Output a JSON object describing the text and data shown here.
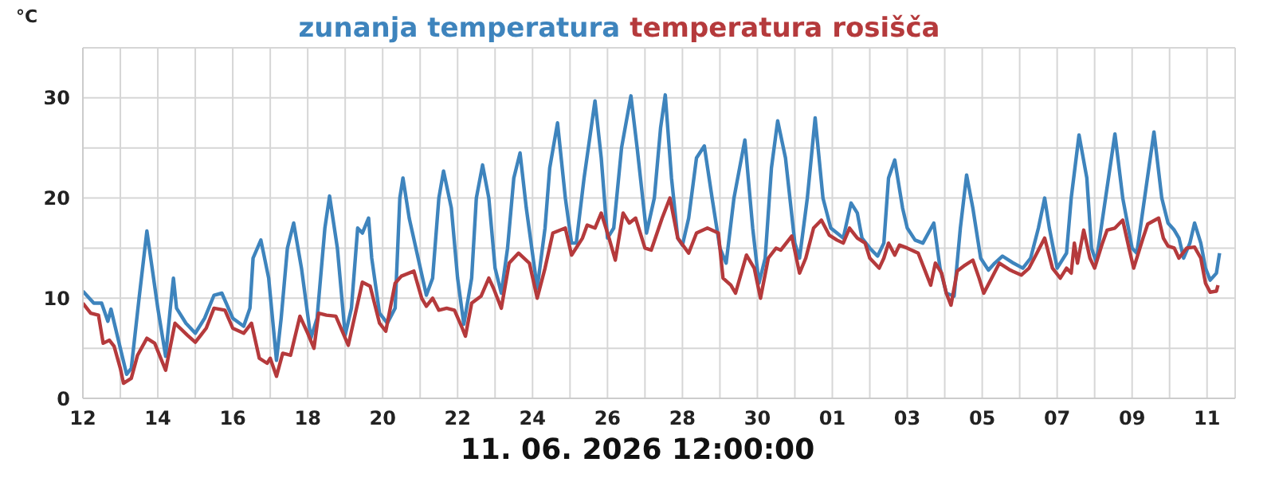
{
  "chart_data": {
    "type": "line",
    "ylabel": "°C",
    "legend": "top",
    "grid": true,
    "marker": "none",
    "line_style": "solid",
    "annotations": [
      "11. 06. 2026 12:00:00"
    ],
    "xlim": [
      "2026-05-12T00:00",
      "2026-06-11T18:00"
    ],
    "xticks": [
      {
        "value": "2026-05-12",
        "label": "12"
      },
      {
        "value": "2026-05-13",
        "label": null
      },
      {
        "value": "2026-05-14",
        "label": "14"
      },
      {
        "value": "2026-05-15",
        "label": null
      },
      {
        "value": "2026-05-16",
        "label": "16"
      },
      {
        "value": "2026-05-17",
        "label": null
      },
      {
        "value": "2026-05-18",
        "label": "18"
      },
      {
        "value": "2026-05-19",
        "label": null
      },
      {
        "value": "2026-05-20",
        "label": "20"
      },
      {
        "value": "2026-05-21",
        "label": null
      },
      {
        "value": "2026-05-22",
        "label": "22"
      },
      {
        "value": "2026-05-23",
        "label": null
      },
      {
        "value": "2026-05-24",
        "label": "24"
      },
      {
        "value": "2026-05-25",
        "label": null
      },
      {
        "value": "2026-05-26",
        "label": "26"
      },
      {
        "value": "2026-05-27",
        "label": null
      },
      {
        "value": "2026-05-28",
        "label": "28"
      },
      {
        "value": "2026-05-29",
        "label": null
      },
      {
        "value": "2026-05-30",
        "label": "30"
      },
      {
        "value": "2026-05-31",
        "label": null
      },
      {
        "value": "2026-06-01",
        "label": "01"
      },
      {
        "value": "2026-06-02",
        "label": null
      },
      {
        "value": "2026-06-03",
        "label": "03"
      },
      {
        "value": "2026-06-04",
        "label": null
      },
      {
        "value": "2026-06-05",
        "label": "05"
      },
      {
        "value": "2026-06-06",
        "label": null
      },
      {
        "value": "2026-06-07",
        "label": "07"
      },
      {
        "value": "2026-06-08",
        "label": null
      },
      {
        "value": "2026-06-09",
        "label": "09"
      },
      {
        "value": "2026-06-10",
        "label": null
      },
      {
        "value": "2026-06-11",
        "label": "11"
      }
    ],
    "ylim": [
      0,
      35
    ],
    "yticks": [
      0,
      {
        "value": 5,
        "label": null
      },
      10,
      {
        "value": 15,
        "label": null
      },
      20,
      {
        "value": 25,
        "label": null
      },
      30
    ],
    "series": [
      {
        "name": "zunanja temperatura",
        "color": "#3e84bd",
        "x": [
          "2026-05-12T00:00",
          "2026-05-12T07:00",
          "2026-05-12T12:00",
          "2026-05-12T16:00",
          "2026-05-12T18:00",
          "2026-05-13T00:00",
          "2026-05-13T04:00",
          "2026-05-13T07:00",
          "2026-05-13T12:00",
          "2026-05-13T17:00",
          "2026-05-14T00:00",
          "2026-05-14T05:00",
          "2026-05-14T08:00",
          "2026-05-14T10:00",
          "2026-05-14T12:00",
          "2026-05-14T18:00",
          "2026-05-15T00:00",
          "2026-05-15T06:00",
          "2026-05-15T12:00",
          "2026-05-15T17:00",
          "2026-05-16T00:00",
          "2026-05-16T07:00",
          "2026-05-16T11:00",
          "2026-05-16T13:00",
          "2026-05-16T18:00",
          "2026-05-16T23:00",
          "2026-05-17T04:00",
          "2026-05-17T07:00",
          "2026-05-17T11:00",
          "2026-05-17T15:00",
          "2026-05-17T20:00",
          "2026-05-18T02:00",
          "2026-05-18T06:00",
          "2026-05-18T11:00",
          "2026-05-18T14:00",
          "2026-05-18T19:00",
          "2026-05-19T00:00",
          "2026-05-19T04:00",
          "2026-05-19T08:00",
          "2026-05-19T11:00",
          "2026-05-19T15:00",
          "2026-05-19T17:00",
          "2026-05-19T22:00",
          "2026-05-20T03:00",
          "2026-05-20T08:00",
          "2026-05-20T11:00",
          "2026-05-20T13:00",
          "2026-05-20T17:00",
          "2026-05-21T04:00",
          "2026-05-21T08:00",
          "2026-05-21T12:00",
          "2026-05-21T15:00",
          "2026-05-21T20:00",
          "2026-05-22T00:00",
          "2026-05-22T04:00",
          "2026-05-22T09:00",
          "2026-05-22T12:00",
          "2026-05-22T16:00",
          "2026-05-22T20:00",
          "2026-05-23T00:00",
          "2026-05-23T04:00",
          "2026-05-23T08:00",
          "2026-05-23T12:00",
          "2026-05-23T16:00",
          "2026-05-23T20:00",
          "2026-05-24T03:00",
          "2026-05-24T08:00",
          "2026-05-24T11:00",
          "2026-05-24T16:00",
          "2026-05-24T21:00",
          "2026-05-25T01:00",
          "2026-05-25T04:00",
          "2026-05-25T09:00",
          "2026-05-25T16:00",
          "2026-05-25T20:00",
          "2026-05-26T00:00",
          "2026-05-26T04:00",
          "2026-05-26T09:00",
          "2026-05-26T15:00",
          "2026-05-26T19:00",
          "2026-05-27T01:00",
          "2026-05-27T06:00",
          "2026-05-27T10:00",
          "2026-05-27T13:00",
          "2026-05-27T17:00",
          "2026-05-27T21:00",
          "2026-05-28T00:00",
          "2026-05-28T04:00",
          "2026-05-28T09:00",
          "2026-05-28T14:00",
          "2026-05-28T19:00",
          "2026-05-29T00:00",
          "2026-05-29T04:00",
          "2026-05-29T09:00",
          "2026-05-29T16:00",
          "2026-05-29T21:00",
          "2026-05-30T01:00",
          "2026-05-30T05:00",
          "2026-05-30T09:00",
          "2026-05-30T13:00",
          "2026-05-30T18:00",
          "2026-05-31T00:00",
          "2026-05-31T03:00",
          "2026-05-31T08:00",
          "2026-05-31T13:00",
          "2026-05-31T18:00",
          "2026-05-31T23:00",
          "2026-06-01T03:00",
          "2026-06-01T07:00",
          "2026-06-01T12:00",
          "2026-06-01T16:00",
          "2026-06-01T19:00",
          "2026-06-02T00:00",
          "2026-06-02T05:00",
          "2026-06-02T09:00",
          "2026-06-02T12:00",
          "2026-06-02T16:00",
          "2026-06-02T21:00",
          "2026-06-03T00:00",
          "2026-06-03T05:00",
          "2026-06-03T10:00",
          "2026-06-03T17:00",
          "2026-06-03T21:00",
          "2026-06-04T01:00",
          "2026-06-04T06:00",
          "2026-06-04T10:00",
          "2026-06-04T14:00",
          "2026-06-04T18:00",
          "2026-06-04T23:00",
          "2026-06-05T04:00",
          "2026-06-05T08:00",
          "2026-06-05T13:00",
          "2026-06-05T20:00",
          "2026-06-06T02:00",
          "2026-06-06T07:00",
          "2026-06-06T12:00",
          "2026-06-06T16:00",
          "2026-06-06T19:00",
          "2026-06-07T00:00",
          "2026-06-07T06:00",
          "2026-06-07T09:00",
          "2026-06-07T14:00",
          "2026-06-07T19:00",
          "2026-06-07T22:00",
          "2026-06-08T01:00",
          "2026-06-08T07:00",
          "2026-06-08T13:00",
          "2026-06-08T18:00",
          "2026-06-09T00:00",
          "2026-06-09T03:00",
          "2026-06-09T08:00",
          "2026-06-09T14:00",
          "2026-06-09T19:00",
          "2026-06-09T23:00",
          "2026-06-10T03:00",
          "2026-06-10T06:00",
          "2026-06-10T09:00",
          "2026-06-10T13:00",
          "2026-06-10T16:00",
          "2026-06-10T20:00",
          "2026-06-10T23:00",
          "2026-06-11T02:00",
          "2026-06-11T06:00",
          "2026-06-11T08:00"
        ],
        "values": [
          10.7,
          9.5,
          9.5,
          7.7,
          8.9,
          5,
          2.4,
          3,
          10,
          16.7,
          9,
          4.2,
          9,
          12,
          9,
          7.5,
          6.5,
          8,
          10.3,
          10.5,
          8,
          7.2,
          9,
          14,
          15.8,
          12,
          3.8,
          8,
          15,
          17.5,
          13,
          6,
          8,
          17,
          20.2,
          15,
          6.3,
          9,
          17,
          16.5,
          18,
          14,
          8.5,
          7.5,
          9,
          20,
          22,
          18,
          10.3,
          12,
          20,
          22.7,
          19,
          12,
          7.4,
          12,
          20,
          23.3,
          20,
          13,
          10.5,
          15,
          22,
          24.5,
          19,
          11,
          17,
          23,
          27.5,
          20,
          15.5,
          15.5,
          22,
          29.7,
          24,
          16,
          17,
          25,
          30.2,
          25,
          16.5,
          20,
          27,
          30.3,
          22,
          16,
          15.3,
          18,
          24,
          25.2,
          20,
          15,
          13.5,
          20,
          25.8,
          17,
          11.5,
          14,
          23,
          27.7,
          24,
          15.5,
          14,
          20,
          28,
          20,
          17,
          16.5,
          16,
          19.5,
          18.5,
          16,
          15,
          14.2,
          15.5,
          22,
          23.8,
          19,
          17,
          15.8,
          15.5,
          17.5,
          13,
          10.5,
          10.2,
          17,
          22.3,
          19,
          14,
          12.8,
          13.5,
          14.2,
          13.5,
          13,
          14,
          17,
          20,
          17,
          13,
          14.5,
          20,
          26.3,
          22,
          15,
          13.6,
          20,
          26.4,
          20,
          15,
          14.5,
          20,
          26.6,
          20,
          17.5,
          16.8,
          16,
          14,
          15.5,
          17.5,
          15.5,
          13,
          11.8,
          12.5,
          14.5
        ]
      },
      {
        "name": "temperatura rosišča",
        "color": "#b53a3c",
        "x": [
          "2026-05-12T00:00",
          "2026-05-12T05:00",
          "2026-05-12T10:00",
          "2026-05-12T13:00",
          "2026-05-12T17:00",
          "2026-05-12T20:00",
          "2026-05-13T00:00",
          "2026-05-13T02:00",
          "2026-05-13T07:00",
          "2026-05-13T11:00",
          "2026-05-13T17:00",
          "2026-05-13T22:00",
          "2026-05-14T05:00",
          "2026-05-14T11:00",
          "2026-05-14T19:00",
          "2026-05-15T00:00",
          "2026-05-15T07:00",
          "2026-05-15T12:00",
          "2026-05-15T19:00",
          "2026-05-16T00:00",
          "2026-05-16T07:00",
          "2026-05-16T12:00",
          "2026-05-16T17:00",
          "2026-05-16T22:00",
          "2026-05-17T00:00",
          "2026-05-17T04:00",
          "2026-05-17T08:00",
          "2026-05-17T13:00",
          "2026-05-17T19:00",
          "2026-05-18T00:00",
          "2026-05-18T04:00",
          "2026-05-18T07:00",
          "2026-05-18T12:00",
          "2026-05-18T18:00",
          "2026-05-19T02:00",
          "2026-05-19T11:00",
          "2026-05-19T16:00",
          "2026-05-19T22:00",
          "2026-05-20T02:00",
          "2026-05-20T08:00",
          "2026-05-20T12:00",
          "2026-05-20T20:00",
          "2026-05-21T01:00",
          "2026-05-21T04:00",
          "2026-05-21T08:00",
          "2026-05-21T12:00",
          "2026-05-21T17:00",
          "2026-05-21T22:00",
          "2026-05-22T03:00",
          "2026-05-22T05:00",
          "2026-05-22T09:00",
          "2026-05-22T15:00",
          "2026-05-22T20:00",
          "2026-05-22T23:00",
          "2026-05-23T04:00",
          "2026-05-23T09:00",
          "2026-05-23T15:00",
          "2026-05-23T22:00",
          "2026-05-24T03:00",
          "2026-05-24T08:00",
          "2026-05-24T13:00",
          "2026-05-24T21:00",
          "2026-05-25T01:00",
          "2026-05-25T08:00",
          "2026-05-25T11:00",
          "2026-05-25T16:00",
          "2026-05-25T20:00",
          "2026-05-26T01:00",
          "2026-05-26T05:00",
          "2026-05-26T10:00",
          "2026-05-26T14:00",
          "2026-05-26T18:00",
          "2026-05-27T00:00",
          "2026-05-27T04:00",
          "2026-05-27T11:00",
          "2026-05-27T16:00",
          "2026-05-27T21:00",
          "2026-05-28T04:00",
          "2026-05-28T09:00",
          "2026-05-28T16:00",
          "2026-05-28T23:00",
          "2026-05-29T02:00",
          "2026-05-29T07:00",
          "2026-05-29T10:00",
          "2026-05-29T17:00",
          "2026-05-29T22:00",
          "2026-05-30T02:00",
          "2026-05-30T07:00",
          "2026-05-30T12:00",
          "2026-05-30T15:00",
          "2026-05-30T22:00",
          "2026-05-31T03:00",
          "2026-05-31T07:00",
          "2026-05-31T12:00",
          "2026-05-31T17:00",
          "2026-05-31T22:00",
          "2026-06-01T03:00",
          "2026-06-01T07:00",
          "2026-06-01T11:00",
          "2026-06-01T16:00",
          "2026-06-01T21:00",
          "2026-06-02T00:00",
          "2026-06-02T06:00",
          "2026-06-02T09:00",
          "2026-06-02T12:00",
          "2026-06-02T16:00",
          "2026-06-02T19:00",
          "2026-06-03T00:00",
          "2026-06-03T07:00",
          "2026-06-03T12:00",
          "2026-06-03T15:00",
          "2026-06-03T18:00",
          "2026-06-03T22:00",
          "2026-06-04T01:00",
          "2026-06-04T04:00",
          "2026-06-04T08:00",
          "2026-06-04T13:00",
          "2026-06-04T18:00",
          "2026-06-04T22:00",
          "2026-06-05T01:00",
          "2026-06-05T06:00",
          "2026-06-05T11:00",
          "2026-06-05T18:00",
          "2026-06-06T01:00",
          "2026-06-06T06:00",
          "2026-06-06T11:00",
          "2026-06-06T16:00",
          "2026-06-06T21:00",
          "2026-06-07T02:00",
          "2026-06-07T06:00",
          "2026-06-07T09:00",
          "2026-06-07T11:00",
          "2026-06-07T13:00",
          "2026-06-07T17:00",
          "2026-06-07T21:00",
          "2026-06-08T00:00",
          "2026-06-08T05:00",
          "2026-06-08T08:00",
          "2026-06-08T13:00",
          "2026-06-08T18:00",
          "2026-06-08T22:00",
          "2026-06-09T01:00",
          "2026-06-09T07:00",
          "2026-06-09T10:00",
          "2026-06-09T17:00",
          "2026-06-09T20:00",
          "2026-06-09T23:00",
          "2026-06-10T03:00",
          "2026-06-10T06:00",
          "2026-06-10T11:00",
          "2026-06-10T16:00",
          "2026-06-10T20:00",
          "2026-06-10T23:00",
          "2026-06-11T02:00",
          "2026-06-11T06:00",
          "2026-06-11T07:00"
        ],
        "values": [
          9.5,
          8.5,
          8.3,
          5.5,
          5.8,
          5.2,
          3,
          1.5,
          2,
          4.3,
          6,
          5.5,
          2.8,
          7.5,
          6.3,
          5.6,
          7,
          9,
          8.8,
          7,
          6.5,
          7.5,
          4,
          3.5,
          4,
          2.2,
          4.5,
          4.3,
          8.2,
          6.5,
          5,
          8.5,
          8.3,
          8.2,
          5.3,
          11.6,
          11.2,
          7.5,
          6.7,
          11.5,
          12.2,
          12.7,
          10,
          9.2,
          10,
          8.8,
          9,
          8.8,
          7,
          6.2,
          9.5,
          10.2,
          12,
          11,
          9,
          13.5,
          14.5,
          13.5,
          10,
          13,
          16.5,
          17,
          14.3,
          16,
          17.3,
          17,
          18.5,
          16,
          13.8,
          18.5,
          17.5,
          18,
          15,
          14.8,
          18,
          20,
          16,
          14.5,
          16.5,
          17,
          16.5,
          12,
          11.3,
          10.5,
          14.3,
          13,
          10,
          14,
          15,
          14.8,
          16.2,
          12.5,
          14,
          17,
          17.8,
          16.3,
          15.8,
          15.5,
          17,
          16,
          15.5,
          14,
          13,
          14,
          15.5,
          14.3,
          15.3,
          15,
          14.5,
          12.5,
          11.3,
          13.5,
          12.5,
          10.5,
          9.3,
          12.7,
          13.3,
          13.8,
          12,
          10.5,
          12,
          13.5,
          12.8,
          12.3,
          13,
          14.5,
          16,
          13,
          12,
          13,
          12.5,
          15.5,
          13.5,
          16.8,
          14,
          13,
          15.5,
          16.8,
          17,
          17.8,
          15,
          13,
          16,
          17.4,
          18,
          16,
          15.2,
          15,
          14,
          15,
          15.1,
          14,
          11.5,
          10.6,
          10.7,
          11.3
        ]
      }
    ]
  }
}
